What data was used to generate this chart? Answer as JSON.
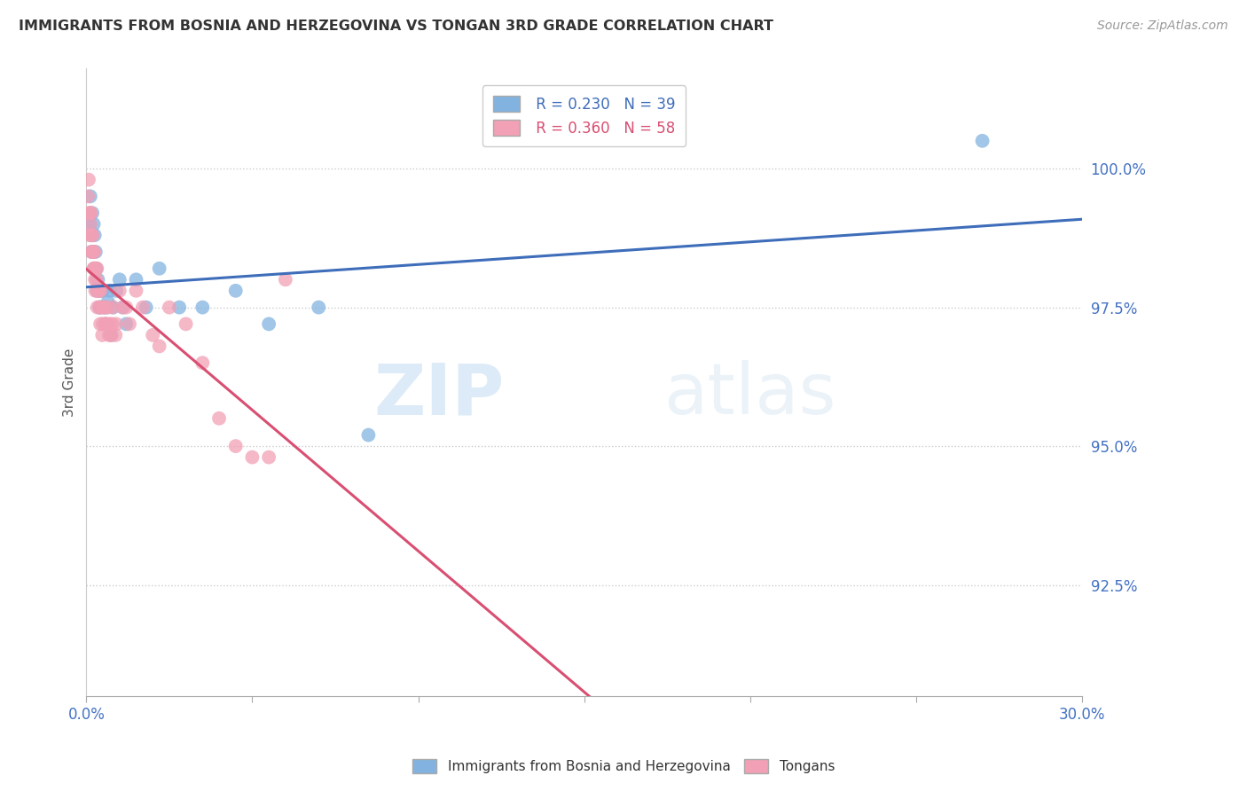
{
  "title": "IMMIGRANTS FROM BOSNIA AND HERZEGOVINA VS TONGAN 3RD GRADE CORRELATION CHART",
  "source": "Source: ZipAtlas.com",
  "ylabel": "3rd Grade",
  "xlim": [
    0.0,
    30.0
  ],
  "ylim": [
    90.5,
    101.8
  ],
  "yticks": [
    92.5,
    95.0,
    97.5,
    100.0
  ],
  "ytick_labels": [
    "92.5%",
    "95.0%",
    "97.5%",
    "100.0%"
  ],
  "xticks": [
    0.0,
    5.0,
    10.0,
    15.0,
    20.0,
    25.0,
    30.0
  ],
  "xtick_labels": [
    "0.0%",
    "",
    "",
    "",
    "",
    "",
    "30.0%"
  ],
  "blue_color": "#82b3e0",
  "pink_color": "#f2a0b5",
  "blue_line_color": "#3e6dba",
  "pink_line_color": "#d94f72",
  "legend_R_blue": "R = 0.230",
  "legend_N_blue": "N = 39",
  "legend_R_pink": "R = 0.360",
  "legend_N_pink": "N = 58",
  "legend_label_blue": "Immigrants from Bosnia and Herzegovina",
  "legend_label_pink": "Tongans",
  "watermark_zip": "ZIP",
  "watermark_atlas": "atlas",
  "blue_x": [
    0.1,
    0.15,
    0.18,
    0.2,
    0.22,
    0.25,
    0.28,
    0.3,
    0.35,
    0.38,
    0.4,
    0.45,
    0.5,
    0.55,
    0.6,
    0.65,
    0.7,
    0.8,
    0.9,
    1.0,
    1.2,
    1.5,
    1.8,
    2.2,
    2.8,
    3.5,
    4.5,
    5.5,
    7.0,
    8.5,
    0.12,
    0.16,
    0.24,
    0.32,
    0.42,
    0.58,
    0.75,
    1.1,
    27.0
  ],
  "blue_y": [
    99.0,
    98.8,
    99.2,
    98.5,
    99.0,
    98.8,
    98.5,
    98.2,
    98.0,
    97.8,
    97.5,
    97.8,
    97.8,
    97.5,
    97.5,
    97.6,
    97.8,
    97.5,
    97.8,
    98.0,
    97.2,
    98.0,
    97.5,
    98.2,
    97.5,
    97.5,
    97.8,
    97.2,
    97.5,
    95.2,
    99.5,
    98.5,
    98.2,
    97.8,
    97.5,
    97.2,
    97.0,
    97.5,
    100.5
  ],
  "pink_x": [
    0.05,
    0.08,
    0.1,
    0.12,
    0.14,
    0.16,
    0.18,
    0.2,
    0.22,
    0.24,
    0.26,
    0.28,
    0.3,
    0.32,
    0.35,
    0.38,
    0.4,
    0.43,
    0.46,
    0.5,
    0.55,
    0.6,
    0.65,
    0.7,
    0.75,
    0.8,
    0.9,
    1.0,
    1.2,
    1.5,
    2.0,
    2.5,
    3.0,
    3.5,
    4.0,
    4.5,
    5.0,
    0.07,
    0.11,
    0.15,
    0.19,
    0.23,
    0.27,
    0.33,
    0.37,
    0.42,
    0.48,
    0.53,
    0.58,
    0.68,
    0.78,
    0.88,
    1.1,
    1.3,
    1.7,
    2.2,
    5.5,
    6.0
  ],
  "pink_y": [
    99.5,
    99.2,
    98.8,
    99.0,
    99.2,
    98.8,
    98.5,
    98.5,
    98.2,
    98.5,
    98.0,
    98.2,
    98.0,
    98.2,
    97.8,
    97.8,
    97.5,
    97.8,
    97.5,
    97.2,
    97.5,
    97.2,
    97.5,
    97.2,
    97.0,
    97.5,
    97.2,
    97.8,
    97.5,
    97.8,
    97.0,
    97.5,
    97.2,
    96.5,
    95.5,
    95.0,
    94.8,
    99.8,
    99.2,
    98.5,
    98.8,
    98.2,
    97.8,
    97.5,
    97.8,
    97.2,
    97.0,
    97.5,
    97.2,
    97.0,
    97.2,
    97.0,
    97.5,
    97.2,
    97.5,
    96.8,
    94.8,
    98.0
  ]
}
